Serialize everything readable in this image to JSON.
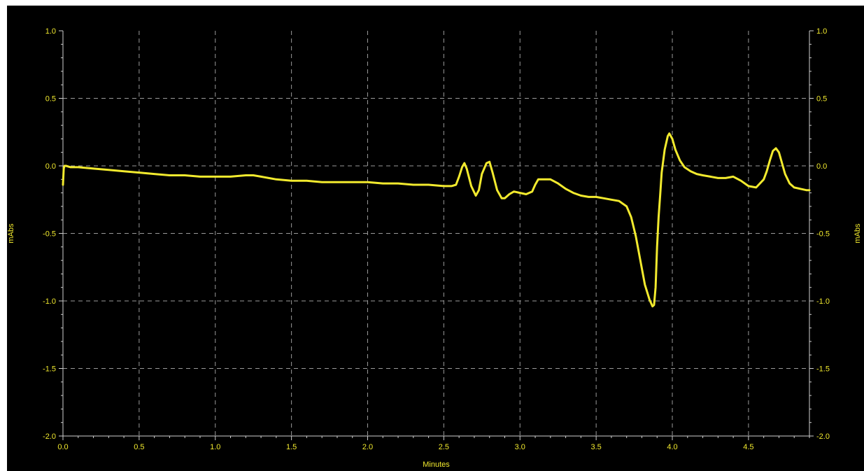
{
  "chart_data": {
    "type": "line",
    "title": "",
    "xlabel": "Minutes",
    "ylabel": "mAbs",
    "ylabel_right": "mAbs",
    "xlim": [
      0.0,
      4.9
    ],
    "ylim": [
      -2.0,
      1.0
    ],
    "x_ticks": [
      0.0,
      0.5,
      1.0,
      1.5,
      2.0,
      2.5,
      3.0,
      3.5,
      4.0,
      4.5
    ],
    "x_tick_labels": [
      "0.0",
      "0.5",
      "1.0",
      "1.5",
      "2.0",
      "2.5",
      "3.0",
      "3.5",
      "4.0",
      "4.5"
    ],
    "y_ticks": [
      1.0,
      0.5,
      0.0,
      -0.5,
      -1.0,
      -1.5,
      -2.0
    ],
    "y_tick_labels": [
      "1.0",
      "0.5",
      "0.0",
      "-0.5",
      "-1.0",
      "-1.5",
      "-2.0"
    ],
    "grid": true,
    "background": "#000000",
    "trace_color": "#f2ea2e",
    "series": [
      {
        "x": [
          0.0,
          0.005,
          0.01,
          0.02,
          0.05,
          0.1,
          0.2,
          0.3,
          0.4,
          0.5,
          0.6,
          0.7,
          0.8,
          0.9,
          1.0,
          1.1,
          1.2,
          1.25,
          1.3,
          1.4,
          1.5,
          1.6,
          1.7,
          1.8,
          1.9,
          2.0,
          2.1,
          2.2,
          2.3,
          2.4,
          2.5,
          2.55,
          2.58,
          2.6,
          2.62,
          2.635,
          2.65,
          2.68,
          2.71,
          2.73,
          2.75,
          2.78,
          2.8,
          2.82,
          2.85,
          2.88,
          2.9,
          2.93,
          2.96,
          3.0,
          3.04,
          3.08,
          3.1,
          3.12,
          3.14,
          3.2,
          3.25,
          3.3,
          3.35,
          3.4,
          3.45,
          3.5,
          3.55,
          3.6,
          3.65,
          3.7,
          3.73,
          3.76,
          3.79,
          3.82,
          3.85,
          3.87,
          3.88,
          3.89,
          3.9,
          3.91,
          3.92,
          3.93,
          3.95,
          3.97,
          3.98,
          4.0,
          4.02,
          4.05,
          4.08,
          4.12,
          4.16,
          4.2,
          4.25,
          4.3,
          4.35,
          4.4,
          4.45,
          4.5,
          4.55,
          4.6,
          4.62,
          4.64,
          4.66,
          4.68,
          4.7,
          4.72,
          4.74,
          4.77,
          4.8,
          4.84,
          4.88,
          4.9
        ],
        "y": [
          -0.14,
          -0.02,
          0.0,
          0.0,
          -0.01,
          -0.01,
          -0.02,
          -0.03,
          -0.04,
          -0.05,
          -0.06,
          -0.07,
          -0.07,
          -0.08,
          -0.08,
          -0.08,
          -0.07,
          -0.07,
          -0.08,
          -0.1,
          -0.11,
          -0.11,
          -0.12,
          -0.12,
          -0.12,
          -0.12,
          -0.13,
          -0.13,
          -0.14,
          -0.14,
          -0.15,
          -0.15,
          -0.14,
          -0.08,
          -0.01,
          0.02,
          -0.02,
          -0.15,
          -0.22,
          -0.18,
          -0.06,
          0.02,
          0.03,
          -0.05,
          -0.18,
          -0.24,
          -0.24,
          -0.21,
          -0.19,
          -0.2,
          -0.21,
          -0.19,
          -0.14,
          -0.1,
          -0.1,
          -0.1,
          -0.13,
          -0.17,
          -0.2,
          -0.22,
          -0.23,
          -0.23,
          -0.24,
          -0.25,
          -0.26,
          -0.3,
          -0.38,
          -0.52,
          -0.7,
          -0.88,
          -0.99,
          -1.04,
          -1.03,
          -0.9,
          -0.6,
          -0.38,
          -0.22,
          -0.05,
          0.12,
          0.22,
          0.24,
          0.2,
          0.12,
          0.04,
          -0.01,
          -0.04,
          -0.06,
          -0.07,
          -0.08,
          -0.09,
          -0.09,
          -0.08,
          -0.11,
          -0.15,
          -0.16,
          -0.1,
          -0.04,
          0.04,
          0.11,
          0.13,
          0.1,
          0.02,
          -0.06,
          -0.13,
          -0.16,
          -0.17,
          -0.18,
          -0.18
        ]
      }
    ]
  }
}
